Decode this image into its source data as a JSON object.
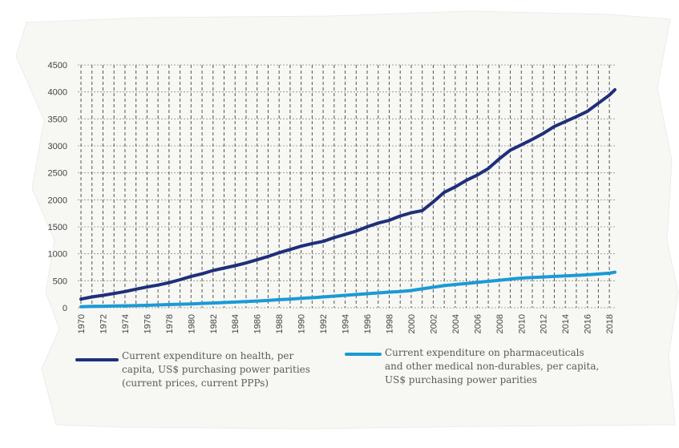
{
  "chart_data": {
    "type": "line",
    "title": "",
    "xlabel": "",
    "ylabel": "",
    "xlim": [
      1970,
      2018.5
    ],
    "ylim": [
      0,
      4500
    ],
    "y_ticks": [
      "0",
      "500",
      "1000",
      "1500",
      "2000",
      "2500",
      "3000",
      "3500",
      "4000",
      "4500"
    ],
    "x_ticks": [
      "1970",
      "1972",
      "1974",
      "1976",
      "1978",
      "1980",
      "1982",
      "1984",
      "1986",
      "1988",
      "1990",
      "1992",
      "1994",
      "1996",
      "1998",
      "2000",
      "2002",
      "2004",
      "2006",
      "2008",
      "2010",
      "2012",
      "2014",
      "2016",
      "2018"
    ],
    "grid": true,
    "legend_position": "bottom",
    "x": [
      1970,
      1971,
      1972,
      1973,
      1974,
      1975,
      1976,
      1977,
      1978,
      1979,
      1980,
      1981,
      1982,
      1983,
      1984,
      1985,
      1986,
      1987,
      1988,
      1989,
      1990,
      1991,
      1992,
      1993,
      1994,
      1995,
      1996,
      1997,
      1998,
      1999,
      2000,
      2001,
      2002,
      2003,
      2004,
      2005,
      2006,
      2007,
      2008,
      2009,
      2010,
      2011,
      2012,
      2013,
      2014,
      2015,
      2016,
      2017,
      2018,
      2018.5
    ],
    "series": [
      {
        "name": "Current expenditure on health, per capita, US$ purchasing power parities (current prices, current PPPs)",
        "color": "#1f2f7a",
        "values": [
          160,
          200,
          230,
          265,
          300,
          345,
          385,
          420,
          465,
          520,
          580,
          630,
          690,
          735,
          780,
          830,
          890,
          950,
          1020,
          1080,
          1140,
          1190,
          1230,
          1300,
          1360,
          1420,
          1500,
          1570,
          1620,
          1700,
          1760,
          1800,
          1960,
          2140,
          2240,
          2360,
          2460,
          2580,
          2760,
          2920,
          3020,
          3120,
          3230,
          3360,
          3450,
          3540,
          3640,
          3790,
          3940,
          4040
        ]
      },
      {
        "name": "Current expenditure on pharmaceuticals and other medical non-durables, per capita, US$ purchasing power parities",
        "color": "#1a9ad6",
        "values": [
          20,
          25,
          28,
          32,
          36,
          40,
          45,
          52,
          60,
          65,
          72,
          80,
          88,
          96,
          105,
          115,
          125,
          135,
          150,
          160,
          175,
          185,
          200,
          215,
          230,
          245,
          260,
          275,
          290,
          300,
          320,
          350,
          380,
          410,
          430,
          450,
          470,
          490,
          510,
          530,
          550,
          560,
          570,
          580,
          590,
          600,
          610,
          625,
          640,
          660
        ]
      }
    ]
  },
  "legend": {
    "health_lines": [
      "Current expenditure on health, per",
      "capita, US$ purchasing power parities",
      "(current prices, current PPPs)"
    ],
    "pharma_lines": [
      "Current expenditure on pharmaceuticals",
      "and other medical non-durables, per capita,",
      "US$ purchasing power parities"
    ]
  }
}
